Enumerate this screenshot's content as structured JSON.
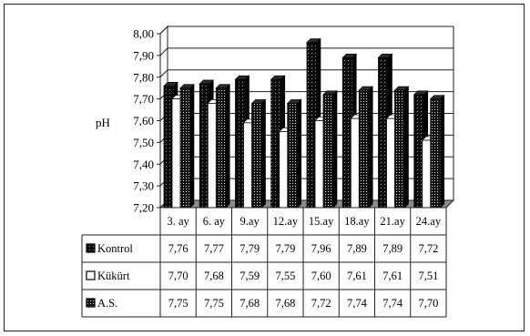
{
  "chart_data": {
    "type": "bar",
    "ylabel": "pH",
    "ylim": [
      7.2,
      8.0
    ],
    "ytick_step": 0.1,
    "ytick_labels": [
      "7,20",
      "7,30",
      "7,40",
      "7,50",
      "7,60",
      "7,70",
      "7,80",
      "7,90",
      "8,00"
    ],
    "grid": true,
    "legend": "data-table-left",
    "categories": [
      "3. ay",
      "6. ay",
      "9.ay",
      "12.ay",
      "15.ay",
      "18.ay",
      "21.ay",
      "24.ay"
    ],
    "series": [
      {
        "name": "Kontrol",
        "pattern": "black-dotted",
        "values": [
          7.76,
          7.77,
          7.79,
          7.79,
          7.96,
          7.89,
          7.89,
          7.72
        ],
        "labels": [
          "7,76",
          "7,77",
          "7,79",
          "7,79",
          "7,96",
          "7,89",
          "7,89",
          "7,72"
        ]
      },
      {
        "name": "Kükürt",
        "pattern": "white",
        "values": [
          7.7,
          7.68,
          7.59,
          7.55,
          7.6,
          7.61,
          7.61,
          7.51
        ],
        "labels": [
          "7,70",
          "7,68",
          "7,59",
          "7,55",
          "7,60",
          "7,61",
          "7,61",
          "7,51"
        ]
      },
      {
        "name": "A.S.",
        "pattern": "black-dense-dots",
        "values": [
          7.75,
          7.75,
          7.68,
          7.68,
          7.72,
          7.74,
          7.74,
          7.7
        ],
        "labels": [
          "7,75",
          "7,75",
          "7,68",
          "7,68",
          "7,72",
          "7,74",
          "7,74",
          "7,70"
        ]
      }
    ]
  }
}
